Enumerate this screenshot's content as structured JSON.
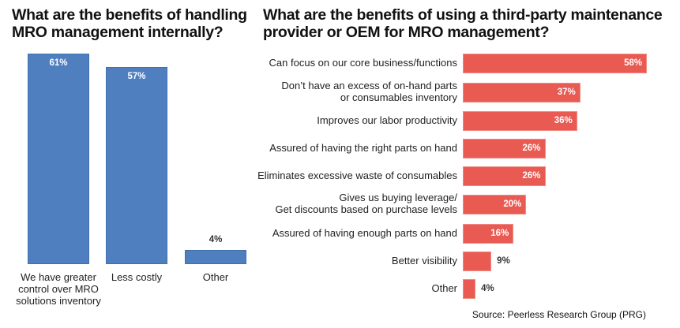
{
  "chart_data": [
    {
      "type": "bar",
      "orientation": "vertical",
      "title": "What are the benefits of handling MRO management internally?",
      "categories": [
        "We have greater control over MRO solutions inventory",
        "Less costly",
        "Other"
      ],
      "values": [
        61,
        57,
        4
      ],
      "labels": [
        "61%",
        "57%",
        "4%"
      ],
      "unit": "%",
      "color": "#4f7fbf"
    },
    {
      "type": "bar",
      "orientation": "horizontal",
      "title": "What are the benefits of using a third-party maintenance provider or OEM for MRO management?",
      "categories": [
        "Can focus on our core business/functions",
        "Don’t have an excess of on-hand parts\nor consumables inventory",
        "Improves our labor productivity",
        "Assured of having the right parts on hand",
        "Eliminates excessive waste of consumables",
        "Gives us buying leverage/\nGet discounts based on purchase levels",
        "Assured of having enough parts on hand",
        "Better visibility",
        "Other"
      ],
      "values": [
        58,
        37,
        36,
        26,
        26,
        20,
        16,
        9,
        4
      ],
      "labels": [
        "58%",
        "37%",
        "36%",
        "26%",
        "26%",
        "20%",
        "16%",
        "9%",
        "4%"
      ],
      "unit": "%",
      "color": "#e85a52"
    }
  ],
  "titles": {
    "left": "What are the benefits of handling MRO management internally?",
    "right": "What are the benefits of using a third-party maintenance provider or OEM for MRO management?"
  },
  "source": "Source: Peerless Research Group (PRG)"
}
